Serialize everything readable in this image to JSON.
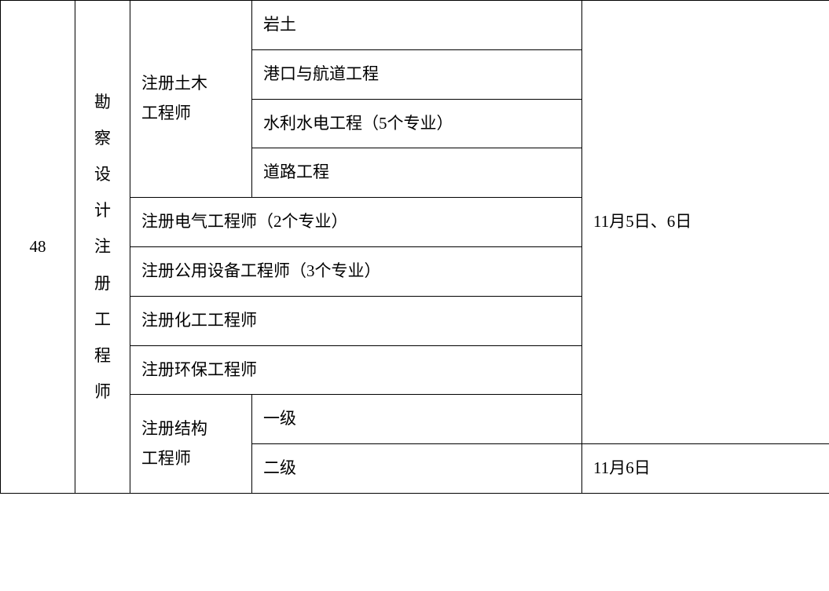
{
  "row_number": "48",
  "category_vertical": "勘察设计注册工程师",
  "civil_engineer": {
    "title": "注册土木\n工程师",
    "specialties": [
      "岩土",
      "港口与航道工程",
      "水利水电工程（5个专业）",
      "道路工程"
    ]
  },
  "other_engineers": [
    "注册电气工程师（2个专业）",
    "注册公用设备工程师（3个专业）",
    "注册化工工程师",
    "注册环保工程师"
  ],
  "structural_engineer": {
    "title": "注册结构\n工程师",
    "levels": [
      "一级",
      "二级"
    ]
  },
  "dates": {
    "main": "11月5日、6日",
    "level2": "11月6日"
  },
  "styling": {
    "font_family": "SimSun",
    "font_size_pt": 16,
    "border_color": "#000000",
    "text_color": "#000000",
    "background_color": "#ffffff",
    "cell_padding": "12px 14px",
    "line_height": 1.8
  }
}
